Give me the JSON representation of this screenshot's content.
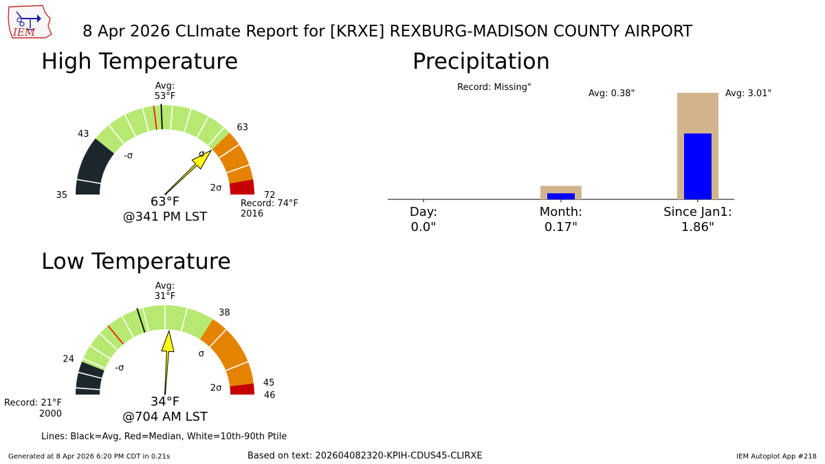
{
  "title": "8 Apr 2026 CLImate Report for [KRXE] REXBURG-MADISON COUNTY AIRPORT",
  "logo_text": "IEM",
  "legend_note": "Lines: Black=Avg, Red=Median, White=10th-90th Ptile",
  "footer": {
    "generated": "Generated at 8 Apr 2026 6:20 PM CDT in 0.21s",
    "source": "Based on text: 202604082320-KPIH-CDUS45-CLIRXE",
    "app": "IEM Autoplot App #218"
  },
  "colors": {
    "dark": "#1c272d",
    "green": "#b7e972",
    "orange": "#e48300",
    "red": "#c50000",
    "needle": "#ffff14",
    "precip_avg": "#d2b48c",
    "precip_obs": "#0000ff"
  },
  "chart_data": [
    {
      "type": "gauge",
      "title": "High Temperature",
      "range": [
        35,
        72
      ],
      "value": 63,
      "value_label": "63°F",
      "time_label": "@341 PM LST",
      "avg": 53,
      "avg_label": "Avg:\n53°F",
      "median": 52,
      "bands": [
        {
          "from": 35,
          "to": 43,
          "color": "dark"
        },
        {
          "from": 43,
          "to": 63,
          "color": "green"
        },
        {
          "from": 63,
          "to": 70,
          "color": "orange"
        },
        {
          "from": 70,
          "to": 72,
          "color": "red"
        }
      ],
      "percentile_lines": [
        37,
        45.5,
        48,
        50.5,
        54.5,
        57,
        59.5,
        62,
        65,
        68
      ],
      "tick_labels": [
        {
          "value": 35,
          "text": "35"
        },
        {
          "value": 43,
          "text": "43"
        },
        {
          "value": 63,
          "text": "63"
        },
        {
          "value": 72,
          "text": "72"
        }
      ],
      "sigma_labels": [
        {
          "value": 44,
          "text": "-σ"
        },
        {
          "value": 62.5,
          "text": "σ"
        },
        {
          "value": 70.5,
          "text": "2σ"
        }
      ],
      "record_label": "Record: 74°F\n2016",
      "record_side": "high"
    },
    {
      "type": "gauge",
      "title": "Low Temperature",
      "range": [
        21,
        46
      ],
      "value": 34,
      "value_label": "34°F",
      "time_label": "@704 AM LST",
      "avg": 31,
      "avg_label": "Avg:\n31°F",
      "median": 28,
      "bands": [
        {
          "from": 21,
          "to": 24,
          "color": "dark"
        },
        {
          "from": 24,
          "to": 38,
          "color": "green"
        },
        {
          "from": 38,
          "to": 45,
          "color": "orange"
        },
        {
          "from": 45,
          "to": 46,
          "color": "red"
        }
      ],
      "percentile_lines": [
        21.6,
        23,
        24.3,
        25.6,
        27,
        29.5,
        31.5,
        33.5,
        35.5,
        39.5,
        43
      ],
      "tick_labels": [
        {
          "value": 24,
          "text": "24"
        },
        {
          "value": 38,
          "text": "38"
        },
        {
          "value": 45,
          "text": "45"
        },
        {
          "value": 46,
          "text": "46"
        }
      ],
      "sigma_labels": [
        {
          "value": 25,
          "text": "-σ"
        },
        {
          "value": 39.5,
          "text": "σ"
        },
        {
          "value": 45,
          "text": "2σ"
        }
      ],
      "record_label": "Record: 21°F\n2000",
      "record_side": "low"
    },
    {
      "type": "bar",
      "title": "Precipitation",
      "categories": [
        "Day:\n0.0\"",
        "Month:\n0.17\"",
        "Since Jan1:\n1.86\""
      ],
      "observed": [
        0.0,
        0.17,
        1.86
      ],
      "average": [
        null,
        0.38,
        3.01
      ],
      "annotations": [
        "Record: Missing\"",
        "Avg: 0.38\"",
        "Avg: 3.01\""
      ]
    }
  ]
}
